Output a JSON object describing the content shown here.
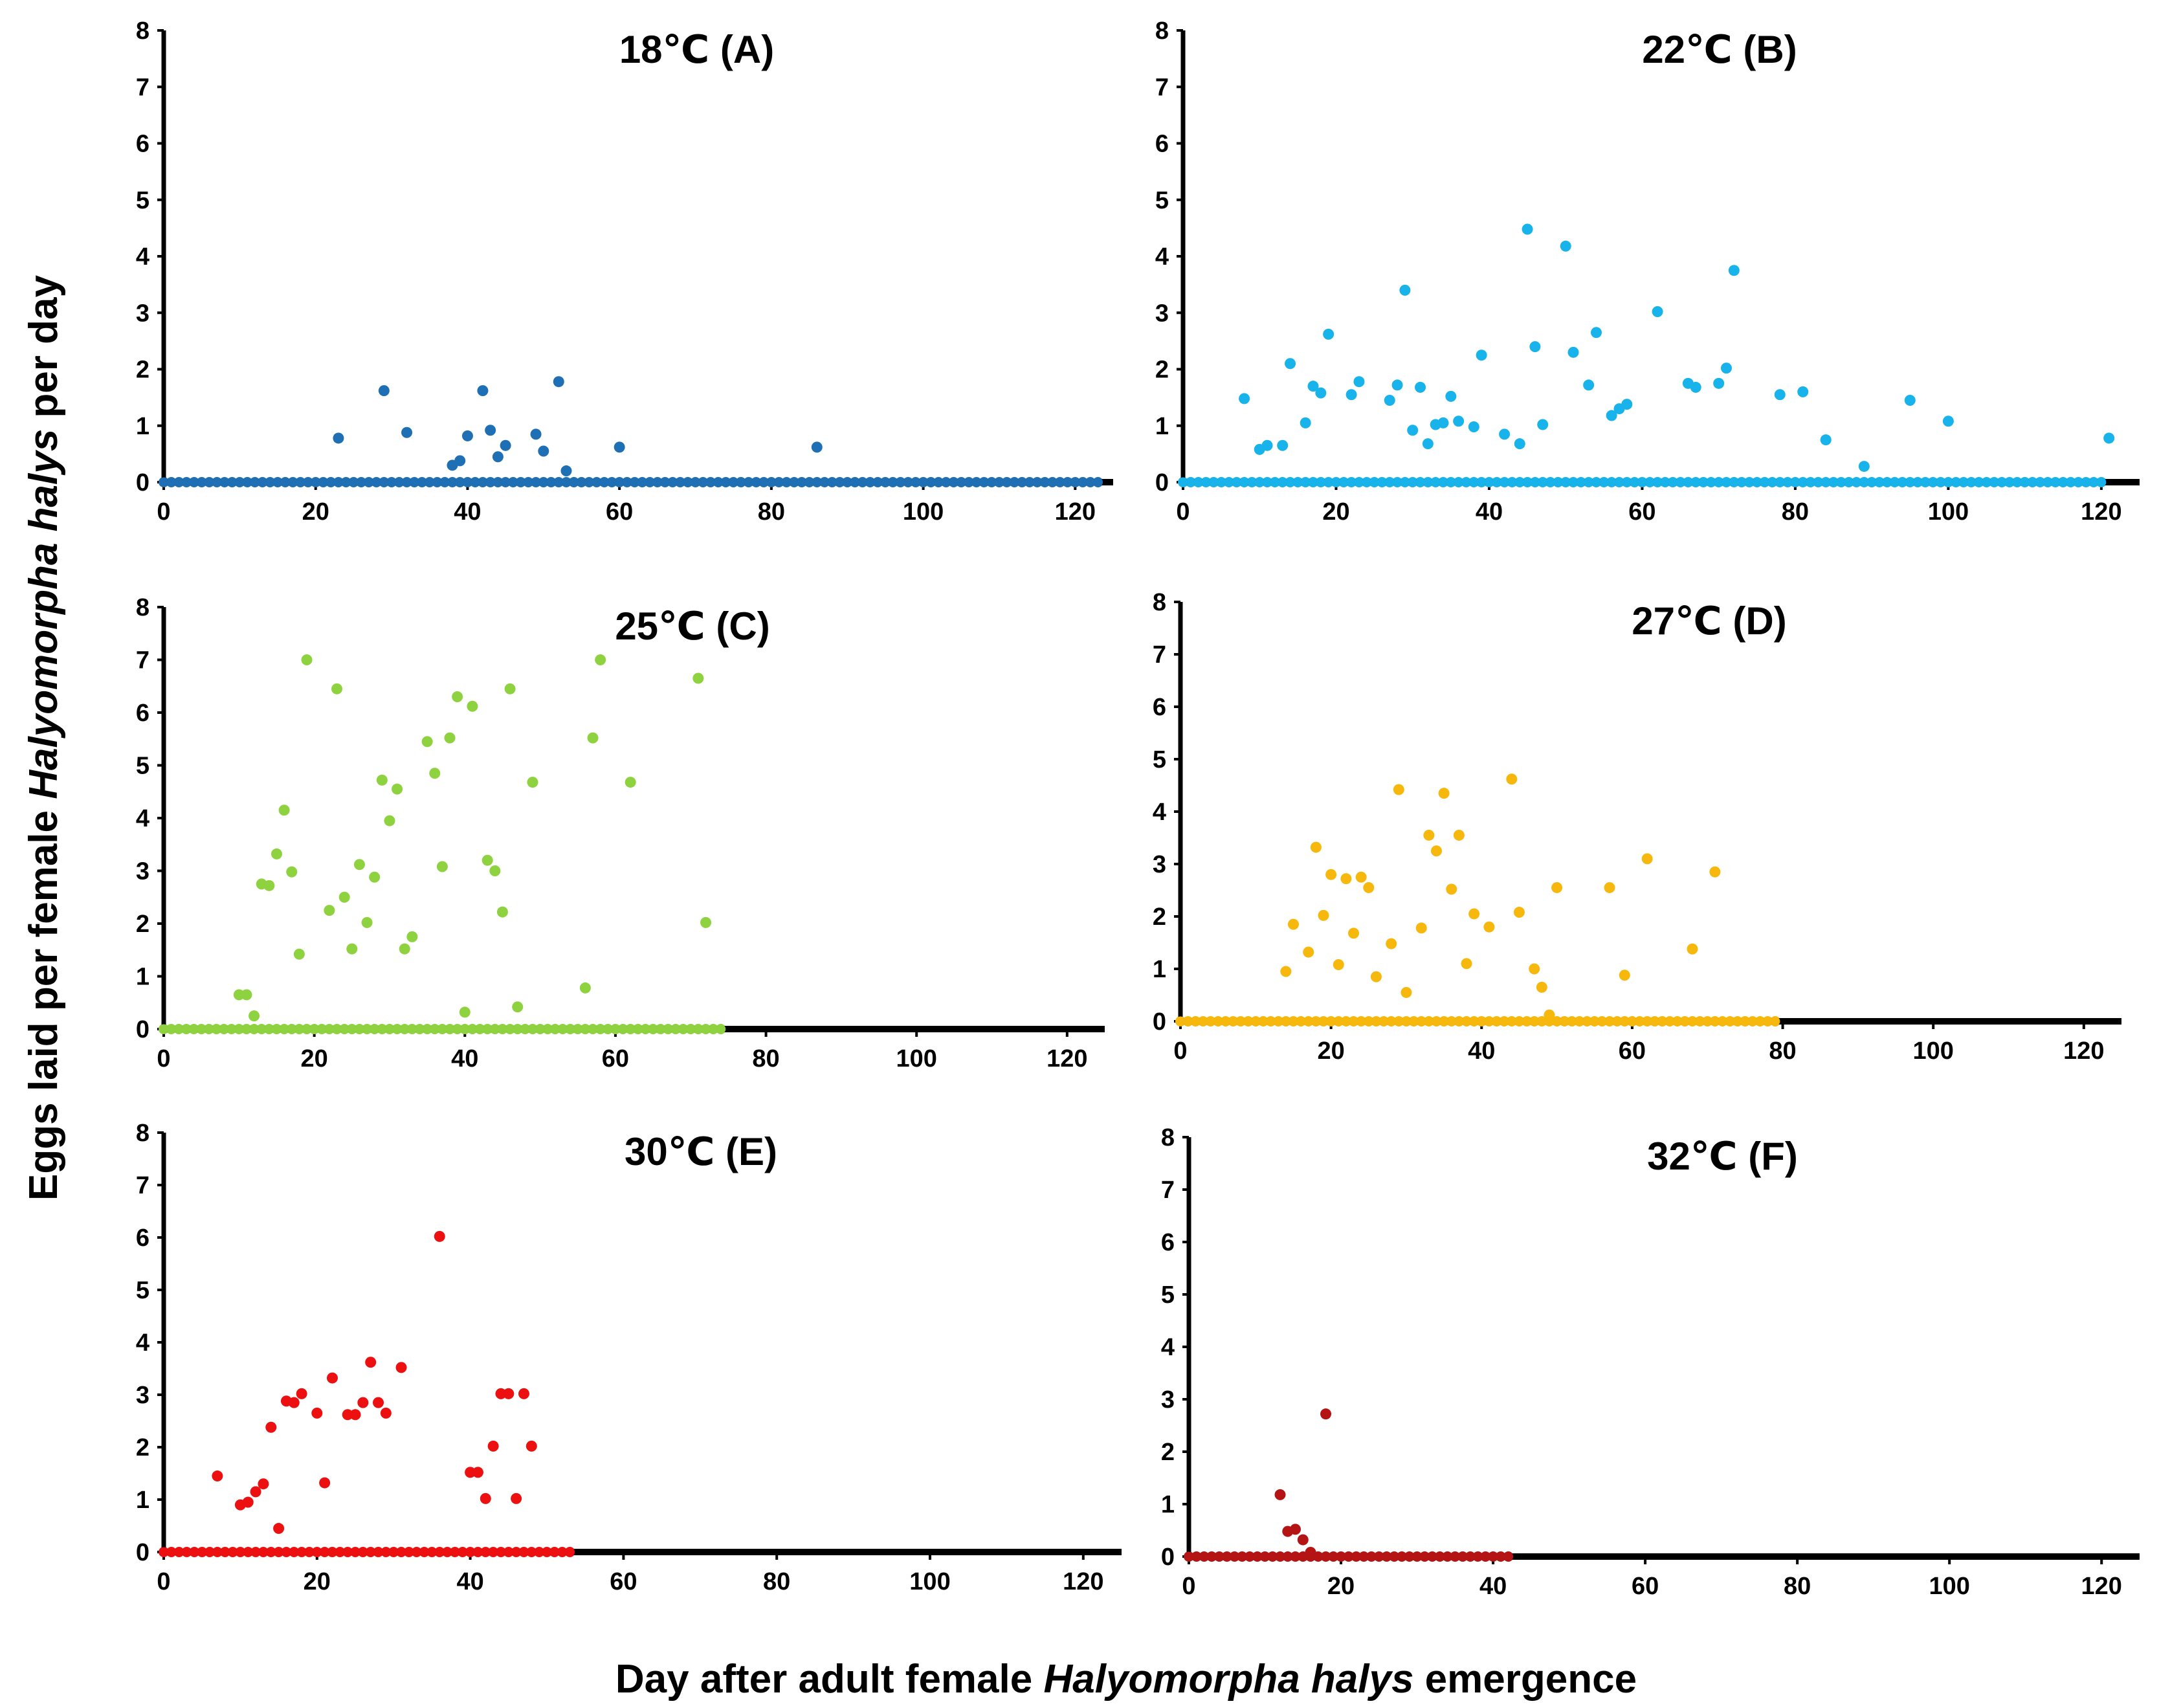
{
  "chart_data": {
    "type": "scatter",
    "ylabel_parts": [
      {
        "text": "Eggs laid per female ",
        "italic": false
      },
      {
        "text": "Halyomorpha halys",
        "italic": true
      },
      {
        "text": " per day",
        "italic": false
      }
    ],
    "xlabel_parts": [
      {
        "text": "Day after adult female ",
        "italic": false
      },
      {
        "text": "Halyomorpha halys",
        "italic": true
      },
      {
        "text": " emergence",
        "italic": false
      }
    ],
    "panels": [
      {
        "title": "18℃ (A)",
        "color": "#1f6fb4",
        "xlim": [
          0,
          125
        ],
        "ylim": [
          0,
          8
        ],
        "xticks": [
          "0",
          "20",
          "40",
          "60",
          "80",
          "100",
          "120"
        ],
        "yticks": [
          "0",
          "1",
          "2",
          "3",
          "4",
          "5",
          "6",
          "7",
          "8"
        ],
        "zero_days": [
          0,
          123
        ],
        "points": [
          [
            23,
            0.78
          ],
          [
            29,
            1.62
          ],
          [
            32,
            0.88
          ],
          [
            38,
            0.3
          ],
          [
            39,
            0.38
          ],
          [
            40,
            0.82
          ],
          [
            42,
            1.62
          ],
          [
            43,
            0.92
          ],
          [
            44,
            0.45
          ],
          [
            45,
            0.65
          ],
          [
            49,
            0.85
          ],
          [
            50,
            0.55
          ],
          [
            52,
            1.78
          ],
          [
            53,
            0.2
          ],
          [
            60,
            0.62
          ],
          [
            86,
            0.62
          ]
        ]
      },
      {
        "title": "22℃ (B)",
        "color": "#17b3ea",
        "xlim": [
          0,
          125
        ],
        "ylim": [
          0,
          8
        ],
        "xticks": [
          "0",
          "20",
          "40",
          "60",
          "80",
          "100",
          "120"
        ],
        "yticks": [
          "0",
          "1",
          "2",
          "3",
          "4",
          "5",
          "6",
          "7",
          "8"
        ],
        "zero_days": [
          0,
          120
        ],
        "points": [
          [
            8,
            1.48
          ],
          [
            10,
            0.58
          ],
          [
            11,
            0.65
          ],
          [
            13,
            0.65
          ],
          [
            14,
            2.1
          ],
          [
            16,
            1.05
          ],
          [
            17,
            1.7
          ],
          [
            18,
            1.58
          ],
          [
            19,
            2.62
          ],
          [
            22,
            1.55
          ],
          [
            23,
            1.78
          ],
          [
            27,
            1.45
          ],
          [
            28,
            1.72
          ],
          [
            29,
            3.4
          ],
          [
            30,
            0.92
          ],
          [
            31,
            1.68
          ],
          [
            32,
            0.68
          ],
          [
            33,
            1.02
          ],
          [
            34,
            1.05
          ],
          [
            35,
            1.52
          ],
          [
            36,
            1.08
          ],
          [
            38,
            0.98
          ],
          [
            39,
            2.25
          ],
          [
            42,
            0.85
          ],
          [
            44,
            0.68
          ],
          [
            45,
            4.48
          ],
          [
            46,
            2.4
          ],
          [
            47,
            1.02
          ],
          [
            50,
            4.18
          ],
          [
            51,
            2.3
          ],
          [
            53,
            1.72
          ],
          [
            54,
            2.65
          ],
          [
            56,
            1.18
          ],
          [
            57,
            1.3
          ],
          [
            58,
            1.38
          ],
          [
            62,
            3.02
          ],
          [
            66,
            1.75
          ],
          [
            67,
            1.68
          ],
          [
            70,
            1.75
          ],
          [
            71,
            2.02
          ],
          [
            72,
            3.75
          ],
          [
            78,
            1.55
          ],
          [
            81,
            1.6
          ],
          [
            84,
            0.75
          ],
          [
            89,
            0.28
          ],
          [
            95,
            1.45
          ],
          [
            100,
            1.08
          ],
          [
            121,
            0.78
          ]
        ]
      },
      {
        "title": "25℃ (C)",
        "color": "#8ed23f",
        "xlim": [
          0,
          125
        ],
        "ylim": [
          0,
          8
        ],
        "xticks": [
          "0",
          "20",
          "40",
          "60",
          "80",
          "100",
          "120"
        ],
        "yticks": [
          "0",
          "1",
          "2",
          "3",
          "4",
          "5",
          "6",
          "7",
          "8"
        ],
        "zero_days": [
          0,
          74
        ],
        "points": [
          [
            10,
            0.65
          ],
          [
            11,
            0.65
          ],
          [
            12,
            0.25
          ],
          [
            13,
            2.75
          ],
          [
            14,
            2.72
          ],
          [
            15,
            3.32
          ],
          [
            16,
            4.15
          ],
          [
            17,
            2.98
          ],
          [
            18,
            1.42
          ],
          [
            19,
            7.0
          ],
          [
            22,
            2.25
          ],
          [
            23,
            6.45
          ],
          [
            24,
            2.5
          ],
          [
            25,
            1.52
          ],
          [
            26,
            3.12
          ],
          [
            27,
            2.02
          ],
          [
            28,
            2.88
          ],
          [
            29,
            4.72
          ],
          [
            30,
            3.95
          ],
          [
            31,
            4.55
          ],
          [
            32,
            1.52
          ],
          [
            33,
            1.75
          ],
          [
            35,
            5.45
          ],
          [
            36,
            4.85
          ],
          [
            37,
            3.08
          ],
          [
            38,
            5.52
          ],
          [
            39,
            6.3
          ],
          [
            40,
            0.32
          ],
          [
            41,
            6.12
          ],
          [
            43,
            3.2
          ],
          [
            44,
            3.0
          ],
          [
            45,
            2.22
          ],
          [
            46,
            6.45
          ],
          [
            47,
            0.42
          ],
          [
            49,
            4.68
          ],
          [
            56,
            0.78
          ],
          [
            57,
            5.52
          ],
          [
            58,
            7.0
          ],
          [
            62,
            4.68
          ],
          [
            71,
            6.65
          ],
          [
            72,
            2.02
          ]
        ]
      },
      {
        "title": "27℃ (D)",
        "color": "#f7b80d",
        "xlim": [
          0,
          125
        ],
        "ylim": [
          0,
          8
        ],
        "xticks": [
          "0",
          "20",
          "40",
          "60",
          "80",
          "100",
          "120"
        ],
        "yticks": [
          "0",
          "1",
          "2",
          "3",
          "4",
          "5",
          "6",
          "7",
          "8"
        ],
        "zero_days": [
          0,
          79
        ],
        "points": [
          [
            14,
            0.95
          ],
          [
            15,
            1.85
          ],
          [
            17,
            1.32
          ],
          [
            18,
            3.32
          ],
          [
            19,
            2.02
          ],
          [
            20,
            2.8
          ],
          [
            21,
            1.08
          ],
          [
            22,
            2.72
          ],
          [
            23,
            1.68
          ],
          [
            24,
            2.75
          ],
          [
            25,
            2.55
          ],
          [
            26,
            0.85
          ],
          [
            28,
            1.48
          ],
          [
            29,
            4.42
          ],
          [
            30,
            0.55
          ],
          [
            32,
            1.78
          ],
          [
            33,
            3.55
          ],
          [
            34,
            3.25
          ],
          [
            35,
            4.35
          ],
          [
            36,
            2.52
          ],
          [
            37,
            3.55
          ],
          [
            38,
            1.1
          ],
          [
            39,
            2.05
          ],
          [
            41,
            1.8
          ],
          [
            44,
            4.62
          ],
          [
            45,
            2.08
          ],
          [
            47,
            1.0
          ],
          [
            48,
            0.65
          ],
          [
            49,
            0.12
          ],
          [
            50,
            2.55
          ],
          [
            57,
            2.55
          ],
          [
            59,
            0.88
          ],
          [
            62,
            3.1
          ],
          [
            68,
            1.38
          ],
          [
            71,
            2.85
          ]
        ]
      },
      {
        "title": "30℃ (E)",
        "color": "#ec1010",
        "xlim": [
          0,
          125
        ],
        "ylim": [
          0,
          8
        ],
        "xticks": [
          "0",
          "20",
          "40",
          "60",
          "80",
          "100",
          "120"
        ],
        "yticks": [
          "0",
          "1",
          "2",
          "3",
          "4",
          "5",
          "6",
          "7",
          "8"
        ],
        "zero_days": [
          0,
          53
        ],
        "points": [
          [
            7,
            1.45
          ],
          [
            10,
            0.9
          ],
          [
            11,
            0.95
          ],
          [
            12,
            1.15
          ],
          [
            13,
            1.3
          ],
          [
            14,
            2.38
          ],
          [
            15,
            0.45
          ],
          [
            16,
            2.88
          ],
          [
            17,
            2.85
          ],
          [
            18,
            3.02
          ],
          [
            20,
            2.65
          ],
          [
            21,
            1.32
          ],
          [
            22,
            3.32
          ],
          [
            24,
            2.62
          ],
          [
            25,
            2.62
          ],
          [
            26,
            2.85
          ],
          [
            27,
            3.62
          ],
          [
            28,
            2.85
          ],
          [
            29,
            2.65
          ],
          [
            31,
            3.52
          ],
          [
            36,
            6.02
          ],
          [
            40,
            1.52
          ],
          [
            41,
            1.52
          ],
          [
            42,
            1.02
          ],
          [
            43,
            2.02
          ],
          [
            44,
            3.02
          ],
          [
            45,
            3.02
          ],
          [
            46,
            1.02
          ],
          [
            47,
            3.02
          ],
          [
            48,
            2.02
          ]
        ]
      },
      {
        "title": "32℃ (F)",
        "color": "#b51414",
        "xlim": [
          0,
          125
        ],
        "ylim": [
          0,
          8
        ],
        "xticks": [
          "0",
          "20",
          "40",
          "60",
          "80",
          "100",
          "120"
        ],
        "yticks": [
          "0",
          "1",
          "2",
          "3",
          "4",
          "5",
          "6",
          "7",
          "8"
        ],
        "zero_days": [
          0,
          42
        ],
        "points": [
          [
            12,
            1.18
          ],
          [
            13,
            0.48
          ],
          [
            14,
            0.52
          ],
          [
            15,
            0.32
          ],
          [
            16,
            0.08
          ],
          [
            18,
            2.72
          ]
        ]
      }
    ]
  }
}
